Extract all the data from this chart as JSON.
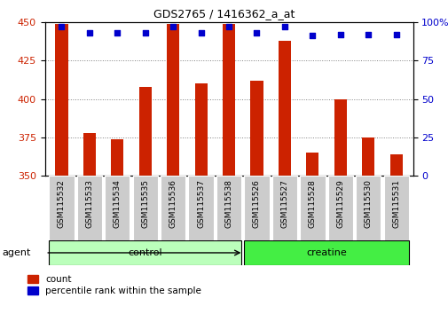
{
  "title": "GDS2765 / 1416362_a_at",
  "categories": [
    "GSM115532",
    "GSM115533",
    "GSM115534",
    "GSM115535",
    "GSM115536",
    "GSM115537",
    "GSM115538",
    "GSM115526",
    "GSM115527",
    "GSM115528",
    "GSM115529",
    "GSM115530",
    "GSM115531"
  ],
  "bar_values": [
    449,
    378,
    374,
    408,
    449,
    410,
    449,
    412,
    438,
    365,
    400,
    375,
    364
  ],
  "percentile_values": [
    97,
    93,
    93,
    93,
    97,
    93,
    97,
    93,
    97,
    91,
    92,
    92,
    92
  ],
  "bar_bottom": 350,
  "ylim_left": [
    350,
    450
  ],
  "ylim_right": [
    0,
    100
  ],
  "yticks_left": [
    350,
    375,
    400,
    425,
    450
  ],
  "yticks_right": [
    0,
    25,
    50,
    75,
    100
  ],
  "bar_color": "#cc2200",
  "dot_color": "#0000cc",
  "groups": [
    {
      "label": "control",
      "start": 0,
      "end": 6,
      "color": "#bbffbb"
    },
    {
      "label": "creatine",
      "start": 7,
      "end": 12,
      "color": "#44ee44"
    }
  ],
  "agent_label": "agent",
  "legend_bar_label": "count",
  "legend_dot_label": "percentile rank within the sample",
  "background_color": "#ffffff",
  "tick_label_bg": "#cccccc",
  "bar_width": 0.45
}
